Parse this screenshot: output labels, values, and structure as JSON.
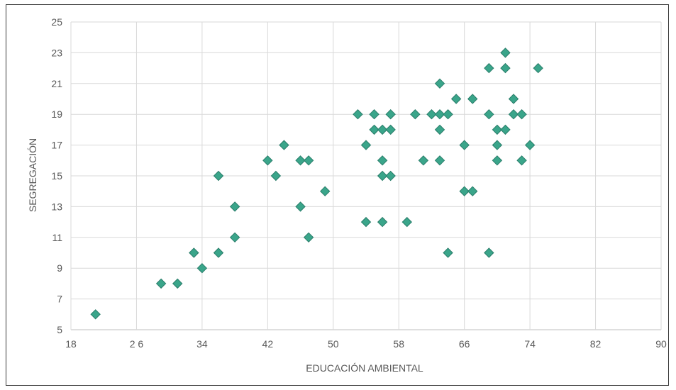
{
  "chart_data": {
    "type": "scatter",
    "xlabel": "EDUCACIÓN AMBIENTAL",
    "ylabel": "SEGREGACIÓN",
    "xlim": [
      18,
      90
    ],
    "ylim": [
      5,
      25
    ],
    "xticks": [
      18,
      26,
      34,
      42,
      50,
      58,
      66,
      74,
      82,
      90
    ],
    "yticks": [
      5,
      7,
      9,
      11,
      13,
      15,
      17,
      19,
      21,
      23,
      25
    ],
    "xtick_labels": [
      "18",
      "2 6",
      "34",
      "42",
      "50",
      "58",
      "66",
      "74",
      "82",
      "90"
    ],
    "grid": true,
    "marker": "diamond",
    "marker_fill": "#3aa58a",
    "marker_edge": "#2a7d6a",
    "points": [
      {
        "x": 21,
        "y": 6
      },
      {
        "x": 29,
        "y": 8
      },
      {
        "x": 31,
        "y": 8
      },
      {
        "x": 33,
        "y": 10
      },
      {
        "x": 34,
        "y": 9
      },
      {
        "x": 36,
        "y": 10
      },
      {
        "x": 36,
        "y": 15
      },
      {
        "x": 38,
        "y": 11
      },
      {
        "x": 38,
        "y": 13
      },
      {
        "x": 42,
        "y": 16
      },
      {
        "x": 43,
        "y": 15
      },
      {
        "x": 44,
        "y": 17
      },
      {
        "x": 46,
        "y": 16
      },
      {
        "x": 46,
        "y": 13
      },
      {
        "x": 47,
        "y": 16
      },
      {
        "x": 47,
        "y": 11
      },
      {
        "x": 49,
        "y": 14
      },
      {
        "x": 53,
        "y": 19
      },
      {
        "x": 54,
        "y": 17
      },
      {
        "x": 54,
        "y": 12
      },
      {
        "x": 55,
        "y": 19
      },
      {
        "x": 55,
        "y": 18
      },
      {
        "x": 56,
        "y": 18
      },
      {
        "x": 56,
        "y": 16
      },
      {
        "x": 56,
        "y": 15
      },
      {
        "x": 56,
        "y": 12
      },
      {
        "x": 57,
        "y": 19
      },
      {
        "x": 57,
        "y": 18
      },
      {
        "x": 57,
        "y": 15
      },
      {
        "x": 59,
        "y": 12
      },
      {
        "x": 60,
        "y": 19
      },
      {
        "x": 61,
        "y": 16
      },
      {
        "x": 62,
        "y": 19
      },
      {
        "x": 63,
        "y": 21
      },
      {
        "x": 63,
        "y": 19
      },
      {
        "x": 63,
        "y": 18
      },
      {
        "x": 63,
        "y": 16
      },
      {
        "x": 64,
        "y": 19
      },
      {
        "x": 64,
        "y": 10
      },
      {
        "x": 65,
        "y": 20
      },
      {
        "x": 66,
        "y": 17
      },
      {
        "x": 66,
        "y": 14
      },
      {
        "x": 67,
        "y": 20
      },
      {
        "x": 67,
        "y": 14
      },
      {
        "x": 69,
        "y": 22
      },
      {
        "x": 69,
        "y": 19
      },
      {
        "x": 69,
        "y": 10
      },
      {
        "x": 70,
        "y": 18
      },
      {
        "x": 70,
        "y": 17
      },
      {
        "x": 70,
        "y": 16
      },
      {
        "x": 71,
        "y": 23
      },
      {
        "x": 71,
        "y": 22
      },
      {
        "x": 71,
        "y": 18
      },
      {
        "x": 72,
        "y": 20
      },
      {
        "x": 72,
        "y": 19
      },
      {
        "x": 73,
        "y": 19
      },
      {
        "x": 73,
        "y": 16
      },
      {
        "x": 74,
        "y": 17
      },
      {
        "x": 75,
        "y": 22
      }
    ]
  }
}
